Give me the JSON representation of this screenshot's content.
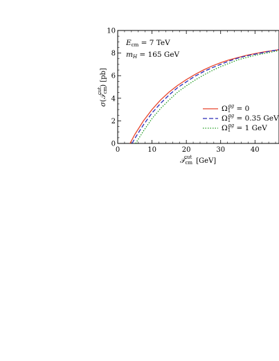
{
  "chart_data": {
    "type": "line",
    "xlabel": "𝒯_cm^cut  [GeV]",
    "ylabel": "σ(𝒯_cm^cut)  [pb]",
    "xlim": [
      0,
      47
    ],
    "ylim": [
      0,
      10
    ],
    "x_ticks": [
      0,
      10,
      20,
      30,
      40
    ],
    "y_ticks": [
      0,
      2,
      4,
      6,
      8,
      10
    ],
    "grid": false,
    "legend_position": "right",
    "annotations": [
      "E_cm = 7 TeV",
      "m_H = 165 GeV"
    ],
    "series": [
      {
        "name": "Ω₁^gg = 0",
        "color": "#e8452c",
        "style": "solid",
        "x": [
          3.6,
          5,
          7.5,
          10,
          12.5,
          15,
          17.5,
          20,
          22.5,
          25,
          27.5,
          30,
          32.5,
          35,
          37.5,
          40,
          42.5,
          45,
          47
        ],
        "y": [
          0,
          0.8,
          2.0,
          3.0,
          3.85,
          4.55,
          5.15,
          5.65,
          6.1,
          6.5,
          6.85,
          7.15,
          7.4,
          7.6,
          7.8,
          7.95,
          8.1,
          8.2,
          8.3
        ]
      },
      {
        "name": "Ω₁^gg = 0.35 GeV",
        "color": "#2a2ab8",
        "style": "dashed",
        "x": [
          4.2,
          5,
          7.5,
          10,
          12.5,
          15,
          17.5,
          20,
          22.5,
          25,
          27.5,
          30,
          32.5,
          35,
          37.5,
          40,
          42.5,
          45,
          47
        ],
        "y": [
          0,
          0.45,
          1.65,
          2.7,
          3.55,
          4.3,
          4.95,
          5.45,
          5.95,
          6.35,
          6.7,
          7.0,
          7.3,
          7.55,
          7.75,
          7.9,
          8.05,
          8.2,
          8.3
        ]
      },
      {
        "name": "Ω₁^gg = 1 GeV",
        "color": "#1e9a1e",
        "style": "dotted",
        "x": [
          5.2,
          7.5,
          10,
          12.5,
          15,
          17.5,
          20,
          22.5,
          25,
          27.5,
          30,
          32.5,
          35,
          37.5,
          40,
          42.5,
          45,
          47
        ],
        "y": [
          0,
          1.1,
          2.2,
          3.1,
          3.85,
          4.55,
          5.1,
          5.6,
          6.05,
          6.45,
          6.8,
          7.1,
          7.4,
          7.6,
          7.8,
          7.95,
          8.1,
          8.22
        ]
      }
    ]
  }
}
